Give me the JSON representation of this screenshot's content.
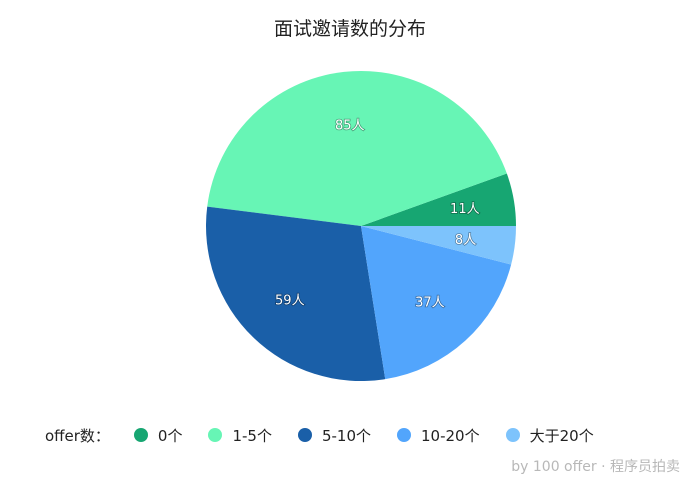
{
  "chart_data": {
    "type": "pie",
    "title": "面试邀请数的分布",
    "legend_title": "offer数：",
    "legend_position": "bottom",
    "slices": [
      {
        "name": "0个",
        "value": 11,
        "label": "11人",
        "color": "#17a672"
      },
      {
        "name": "1-5个",
        "value": 85,
        "label": "85人",
        "color": "#67f5b5"
      },
      {
        "name": "5-10个",
        "value": 59,
        "label": "59人",
        "color": "#1a5fa8"
      },
      {
        "name": "10-20个",
        "value": 37,
        "label": "37人",
        "color": "#52a5fc"
      },
      {
        "name": "大于20个",
        "value": 8,
        "label": "8人",
        "color": "#7dc3fc"
      }
    ]
  },
  "watermark": "by 100 offer · 程序员拍卖"
}
